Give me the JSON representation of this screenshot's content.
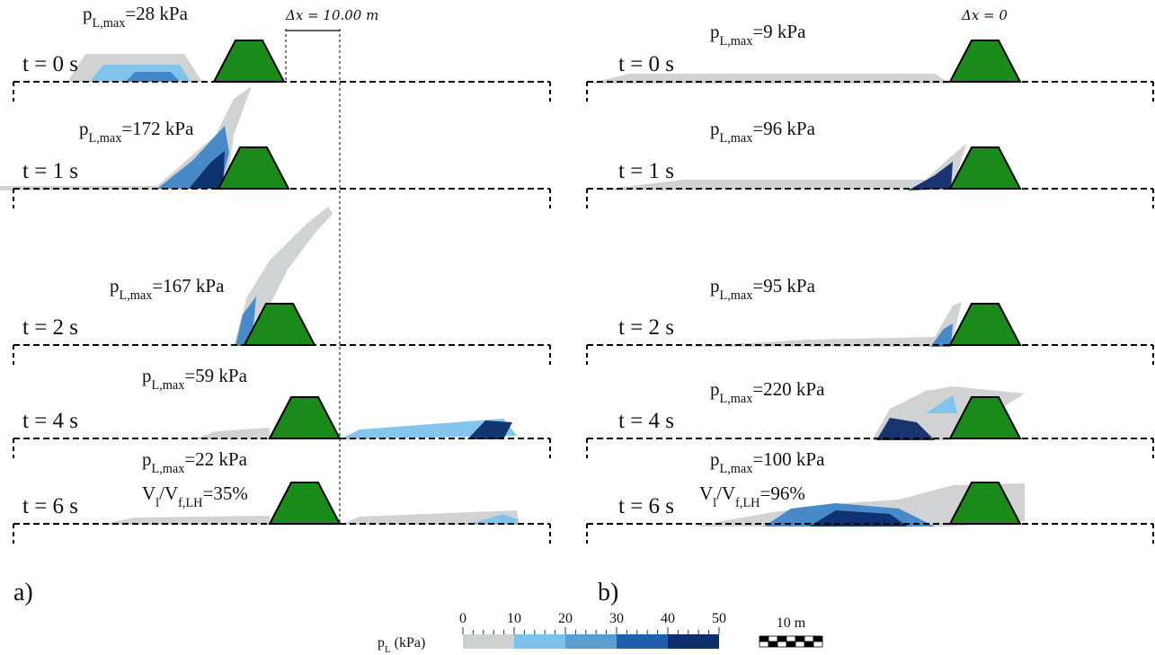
{
  "panels": [
    {
      "label": "a)",
      "annotation": "Δx = 10.00 m",
      "frames": [
        {
          "time": "t = 0 s",
          "pressure": {
            "symbol": "p",
            "subscript": "L,max",
            "text": "=28 kPa"
          }
        },
        {
          "time": "t = 1 s",
          "pressure": {
            "symbol": "p",
            "subscript": "L,max",
            "text": "=172 kPa"
          }
        },
        {
          "time": "t = 2 s",
          "pressure": {
            "symbol": "p",
            "subscript": "L,max",
            "text": "=167 kPa"
          }
        },
        {
          "time": "t = 4 s",
          "pressure": {
            "symbol": "p",
            "subscript": "L,max",
            "text": "=59 kPa"
          }
        },
        {
          "time": "t = 6 s",
          "pressure": {
            "symbol": "p",
            "subscript": "L,max",
            "text": "=22 kPa"
          },
          "ratio": {
            "symbol": "V",
            "subscript": "l",
            "separator": "/V",
            "subscript2": "f,LH",
            "text": "=35%"
          }
        }
      ]
    },
    {
      "label": "b)",
      "annotation": "Δx = 0",
      "frames": [
        {
          "time": "t = 0 s",
          "pressure": {
            "symbol": "p",
            "subscript": "L,max",
            "text": "=9 kPa"
          }
        },
        {
          "time": "t = 1 s",
          "pressure": {
            "symbol": "p",
            "subscript": "L,max",
            "text": "=96 kPa"
          }
        },
        {
          "time": "t = 2 s",
          "pressure": {
            "symbol": "p",
            "subscript": "L,max",
            "text": "=95 kPa"
          }
        },
        {
          "time": "t = 4 s",
          "pressure": {
            "symbol": "p",
            "subscript": "L,max",
            "text": "=220 kPa"
          }
        },
        {
          "time": "t = 6 s",
          "pressure": {
            "symbol": "p",
            "subscript": "L,max",
            "text": "=100 kPa"
          },
          "ratio": {
            "symbol": "V",
            "subscript": "l",
            "separator": "/V",
            "subscript2": "f,LH",
            "text": "=96%"
          }
        }
      ]
    }
  ],
  "colorbar": {
    "label": {
      "symbol": "p",
      "subscript": "L",
      "text": " (kPa)"
    },
    "ticks": [
      0,
      10,
      20,
      30,
      40,
      50
    ]
  },
  "scale_bar": "10 m"
}
